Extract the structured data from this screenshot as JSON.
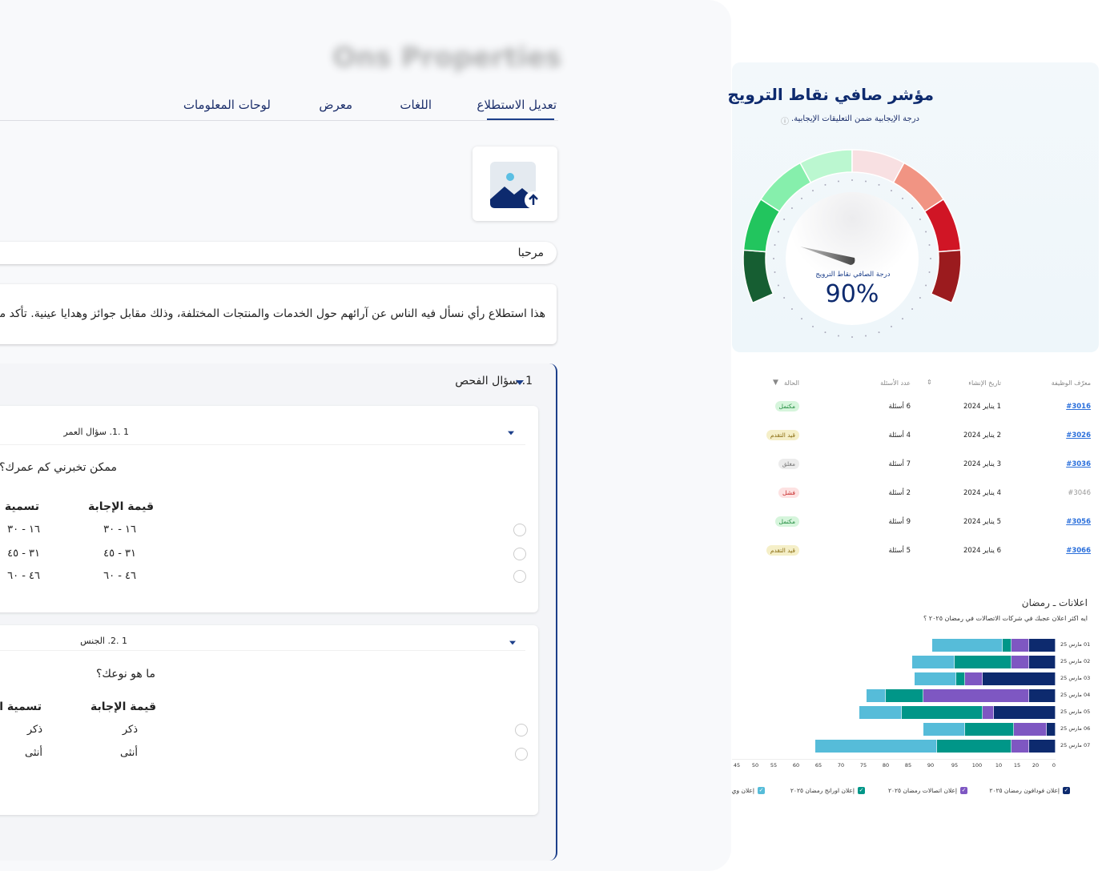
{
  "left_panel": {
    "blurred_title": "Ons Properties",
    "tabs": [
      {
        "label": "تعديل الاستطلاع",
        "active": true
      },
      {
        "label": "اللغات"
      },
      {
        "label": "معرض"
      },
      {
        "label": "لوحات المعلومات"
      }
    ],
    "image_upload_icon": "image-upload-icon",
    "title_input_value": "مرحبا",
    "description_value": "هذا استطلاع رأي نسأل فيه الناس عن آرائهم حول الخدمات والمنتجات المختلفة، وذلك مقابل جوائز وهدايا عينية. تأكد من إدخال",
    "section": {
      "title": "1. سؤال الفحص",
      "questions": [
        {
          "header": "1 .1. سؤال العمر",
          "text": "ممكن تخبرني كم عمرك؟",
          "value_header": "قيمة الإجابة",
          "label_header": "تسمية الإجابة",
          "answers": [
            {
              "value": "١٦ - ٣٠",
              "label": "١٦ - ٣٠"
            },
            {
              "value": "٣١ - ٤٥",
              "label": "٣١ - ٤٥"
            },
            {
              "value": "٤٦ - ٦٠",
              "label": "٤٦ - ٦٠"
            }
          ]
        },
        {
          "header": "1 .2. الجنس",
          "text": "ما هو نوعك؟",
          "value_header": "قيمة الإجابة",
          "label_header": "تسمية الإجابة",
          "answers": [
            {
              "value": "ذكر",
              "label": "ذكر"
            },
            {
              "value": "أنثى",
              "label": "أنثى"
            }
          ]
        }
      ]
    }
  },
  "gauge": {
    "title": "مؤشر صافي نقاط الترويج",
    "subtitle": "درجة الإيجابية ضمن التعليقات الإيجابية.",
    "info_icon": "info-icon",
    "inner_label": "درجة الصافي نقاط الترويج",
    "value": "90%",
    "segment_colors": [
      "#165e32",
      "#22c55e",
      "#86efac",
      "#bbf7d0",
      "#f8e0e2",
      "#f19483",
      "#d01525",
      "#9b1b1e"
    ]
  },
  "table": {
    "headers": {
      "id": "معرّف الوظيفة",
      "date": "تاريخ الإنشاء",
      "count": "عدد الأسئلة",
      "status": "الحالة"
    },
    "rows": [
      {
        "id": "#3016",
        "date": "1 يناير 2024",
        "count": "6 أسئلة",
        "status": "مكتمل",
        "kind": "done",
        "link": true
      },
      {
        "id": "#3026",
        "date": "2 يناير 2024",
        "count": "4 أسئلة",
        "status": "قيد التقدم",
        "kind": "progress",
        "link": true
      },
      {
        "id": "#3036",
        "date": "3 يناير 2024",
        "count": "7 أسئلة",
        "status": "مغلق",
        "kind": "closed",
        "link": true
      },
      {
        "id": "#3046",
        "date": "4 يناير 2024",
        "count": "2 أسئلة",
        "status": "فشل",
        "kind": "failed",
        "link": false
      },
      {
        "id": "#3056",
        "date": "5 يناير 2024",
        "count": "9 أسئلة",
        "status": "مكتمل",
        "kind": "done",
        "link": true
      },
      {
        "id": "#3066",
        "date": "6 يناير 2024",
        "count": "5 أسئلة",
        "status": "قيد التقدم",
        "kind": "progress",
        "link": true
      }
    ]
  },
  "chart_data": {
    "type": "bar",
    "orientation": "horizontal",
    "stacked": true,
    "title": "اعلانات ـ رمضان",
    "subtitle": "ايه اكثر اعلان عجبك في شركات الاتصالات في رمضان ٢٠٢٥ ؟",
    "categories": [
      "01 مارس 25",
      "02 مارس 25",
      "03 مارس 25",
      "04 مارس 25",
      "05 مارس 25",
      "06 مارس 25",
      "07 مارس 25"
    ],
    "x_tick_labels": [
      "0",
      "20",
      "15",
      "10",
      "100",
      "95",
      "90",
      "85",
      "80",
      "75",
      "70",
      "65",
      "60",
      "55",
      "50",
      "45"
    ],
    "series": [
      {
        "name": "إعلان فودافون رمضان ٢٠٢٥",
        "color": "#0d2a6e",
        "values": [
          6,
          6,
          16.5,
          6,
          14,
          2,
          6
        ]
      },
      {
        "name": "إعلان اتصالات رمضان ٢٠٢٥",
        "color": "#7e57c2",
        "values": [
          4,
          4,
          4,
          24,
          2.5,
          7.5,
          4
        ]
      },
      {
        "name": "إعلان اورانج رمضان ٢٠٢٥",
        "color": "#009688",
        "values": [
          2,
          13,
          2,
          8.5,
          18.5,
          11,
          17
        ]
      },
      {
        "name": "إعلان وي",
        "color": "#56bcd9",
        "values": [
          16,
          9.5,
          9.5,
          4.5,
          9.5,
          9.5,
          27.5
        ]
      }
    ],
    "legend": "bottom",
    "grid": false
  }
}
